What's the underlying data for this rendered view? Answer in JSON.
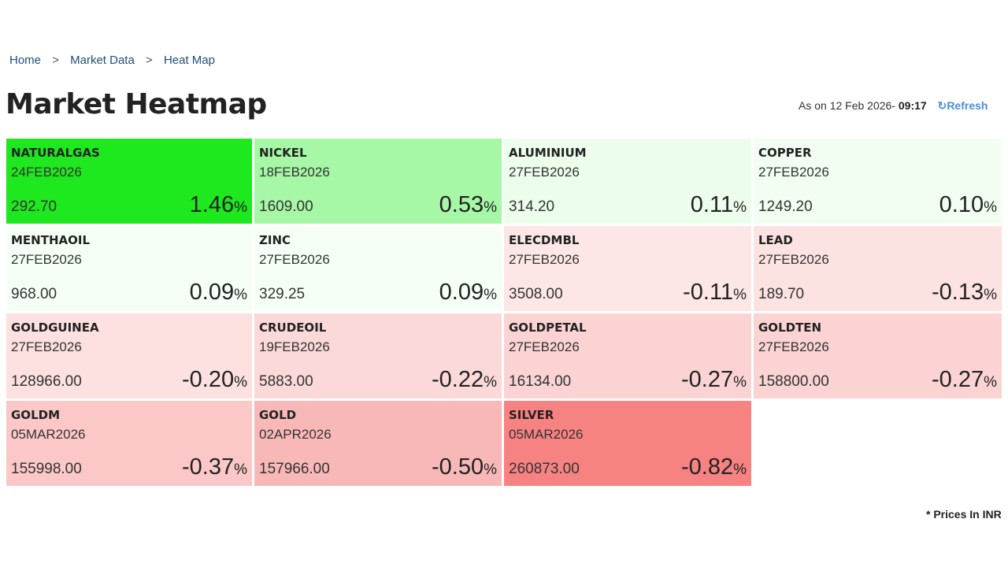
{
  "breadcrumb": [
    "Home",
    "Market Data",
    "Heat Map"
  ],
  "breadcrumb_sep": ">",
  "title": "Market Heatmap",
  "as_on": {
    "label": "As on 12 Feb 2026- ",
    "time": "09:17",
    "refresh_icon": "refresh-icon",
    "refresh_glyph": "↻",
    "refresh_label": "Refresh"
  },
  "cells": [
    {
      "name": "NATURALGAS",
      "expiry": "24FEB2026",
      "price": "292.70",
      "change": "1.46",
      "color": "#1ee81e"
    },
    {
      "name": "NICKEL",
      "expiry": "18FEB2026",
      "price": "1609.00",
      "change": "0.53",
      "color": "#a6f7a6"
    },
    {
      "name": "ALUMINIUM",
      "expiry": "27FEB2026",
      "price": "314.20",
      "change": "0.11",
      "color": "#ecfdec"
    },
    {
      "name": "COPPER",
      "expiry": "27FEB2026",
      "price": "1249.20",
      "change": "0.10",
      "color": "#f2fef2"
    },
    {
      "name": "MENTHAOIL",
      "expiry": "27FEB2026",
      "price": "968.00",
      "change": "0.09",
      "color": "#f6fff6"
    },
    {
      "name": "ZINC",
      "expiry": "27FEB2026",
      "price": "329.25",
      "change": "0.09",
      "color": "#f6fff6"
    },
    {
      "name": "ELECDMBL",
      "expiry": "27FEB2026",
      "price": "3508.00",
      "change": "-0.11",
      "color": "#fde6e6"
    },
    {
      "name": "LEAD",
      "expiry": "27FEB2026",
      "price": "189.70",
      "change": "-0.13",
      "color": "#fde2e2"
    },
    {
      "name": "GOLDGUINEA",
      "expiry": "27FEB2026",
      "price": "128966.00",
      "change": "-0.20",
      "color": "#fde0e0"
    },
    {
      "name": "CRUDEOIL",
      "expiry": "19FEB2026",
      "price": "5883.00",
      "change": "-0.22",
      "color": "#fcd9d9"
    },
    {
      "name": "GOLDPETAL",
      "expiry": "27FEB2026",
      "price": "16134.00",
      "change": "-0.27",
      "color": "#fbd3d3"
    },
    {
      "name": "GOLDTEN",
      "expiry": "27FEB2026",
      "price": "158800.00",
      "change": "-0.27",
      "color": "#fbd3d3"
    },
    {
      "name": "GOLDM",
      "expiry": "05MAR2026",
      "price": "155998.00",
      "change": "-0.37",
      "color": "#fbc7c7"
    },
    {
      "name": "GOLD",
      "expiry": "02APR2026",
      "price": "157966.00",
      "change": "-0.50",
      "color": "#f9b8b8"
    },
    {
      "name": "SILVER",
      "expiry": "05MAR2026",
      "price": "260873.00",
      "change": "-0.82",
      "color": "#f78282"
    }
  ],
  "percent_sign": "%",
  "footnote": "* Prices In INR"
}
